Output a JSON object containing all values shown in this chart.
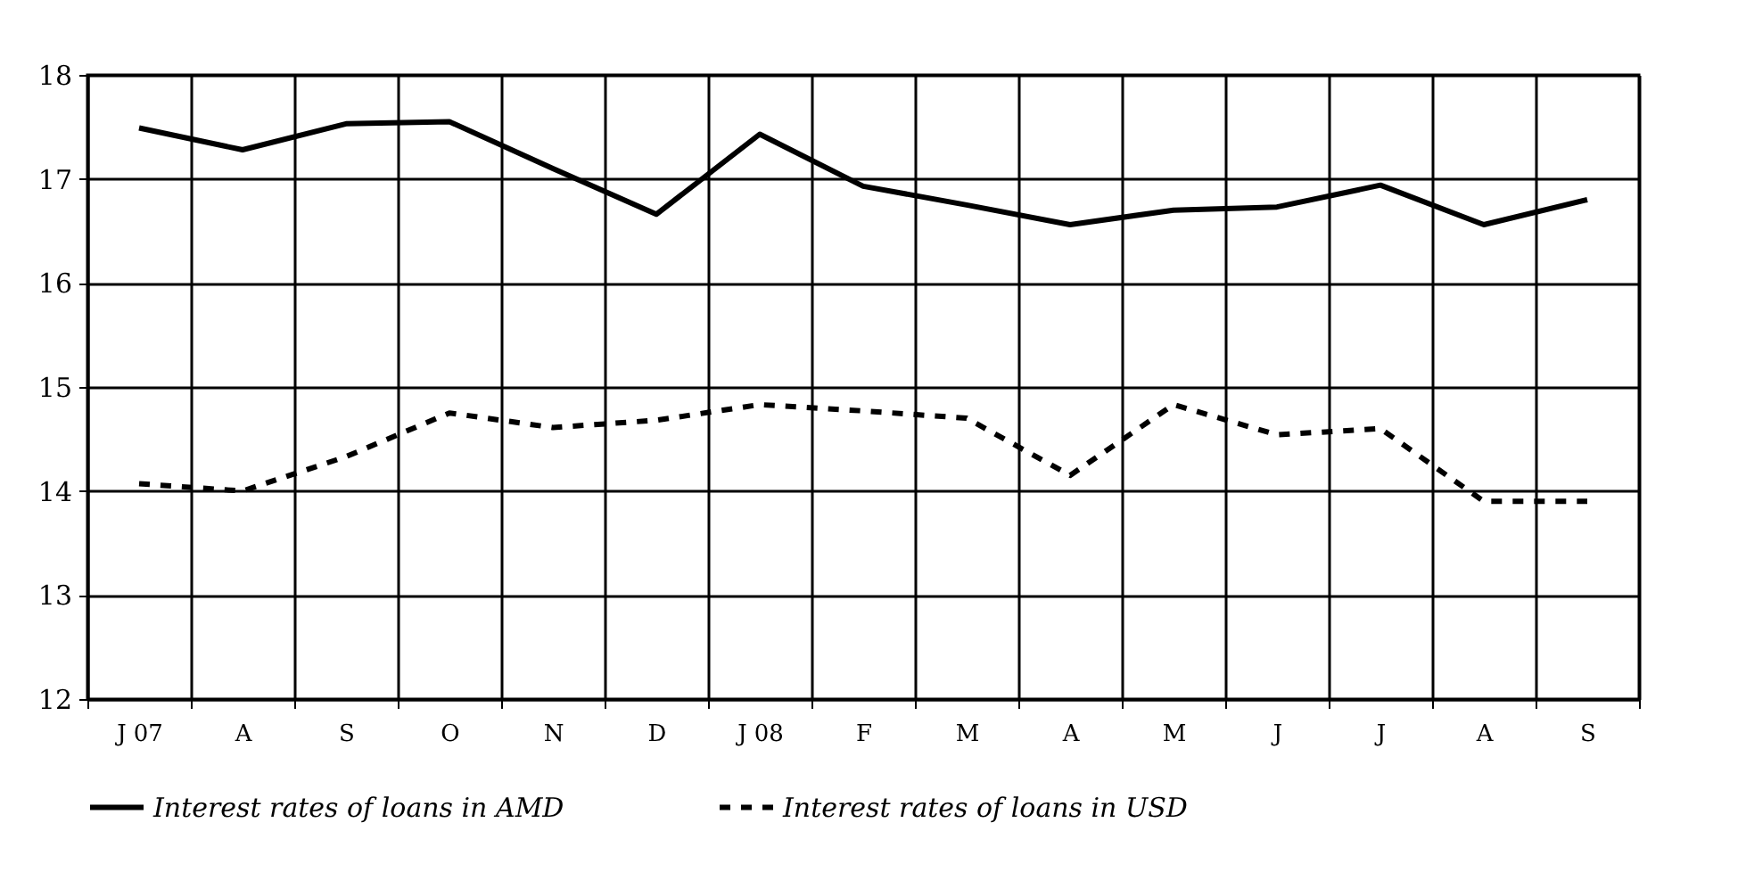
{
  "chart_data": {
    "type": "line",
    "categories": [
      "J 07",
      "A",
      "S",
      "O",
      "N",
      "D",
      "J 08",
      "F",
      "M",
      "A",
      "M",
      "J",
      "J",
      "A",
      "S"
    ],
    "series": [
      {
        "name": "Interest rates of loans in AMD",
        "color": "#000000",
        "line_style": "solid",
        "values": [
          17.49,
          17.28,
          17.53,
          17.55,
          17.1,
          16.66,
          17.43,
          16.93,
          16.75,
          16.56,
          16.7,
          16.73,
          16.94,
          16.56,
          16.8
        ]
      },
      {
        "name": "Interest rates of loans in USD",
        "color": "#000000",
        "line_style": "dashed",
        "values": [
          14.07,
          14.0,
          14.33,
          14.75,
          14.61,
          14.68,
          14.83,
          14.77,
          14.7,
          14.15,
          14.83,
          14.54,
          14.6,
          13.9,
          13.9
        ]
      }
    ],
    "ylim": [
      12,
      18
    ],
    "yticks": [
      12,
      13,
      14,
      15,
      16,
      17,
      18
    ],
    "grid": true,
    "legend": "bottom",
    "marker": "none"
  }
}
